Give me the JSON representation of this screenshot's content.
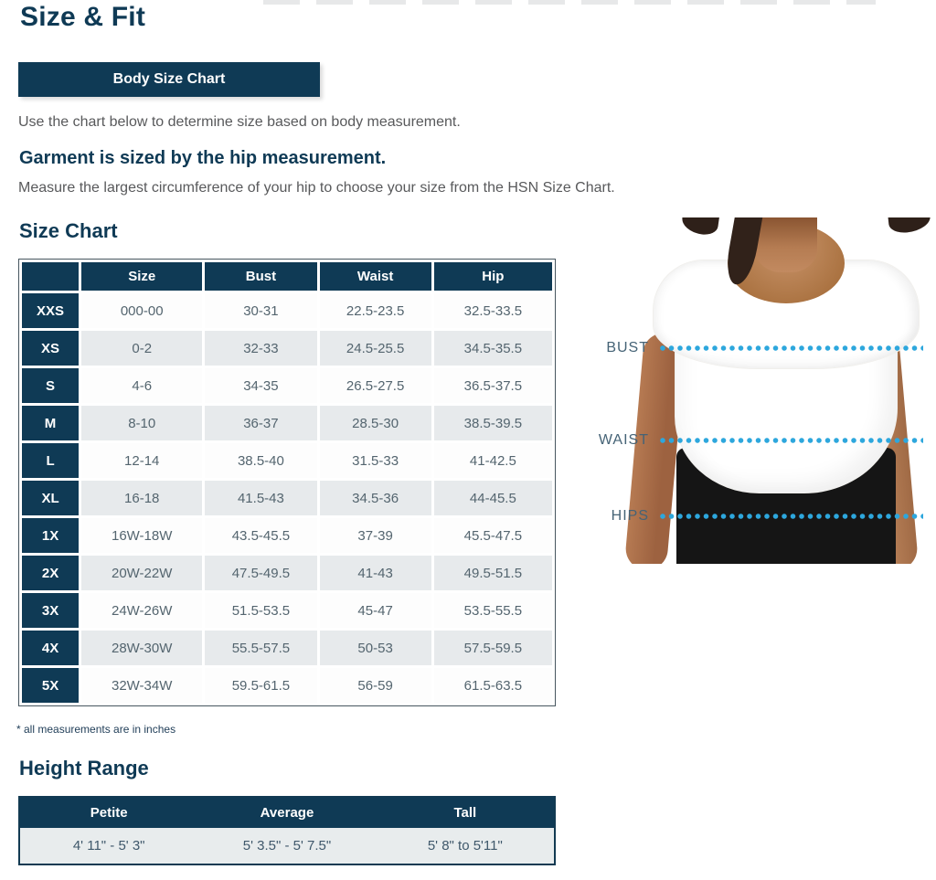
{
  "page": {
    "title": "Size & Fit",
    "button_label": "Body Size Chart",
    "intro": "Use the chart below to determine size based on body measurement.",
    "garment_heading": "Garment is sized by the hip measurement.",
    "measure_instruction": "Measure the largest circumference of your hip to choose your size from the HSN Size Chart."
  },
  "size_chart": {
    "heading": "Size Chart",
    "columns": [
      "",
      "Size",
      "Bust",
      "Waist",
      "Hip"
    ],
    "rows": [
      [
        "XXS",
        "000-00",
        "30-31",
        "22.5-23.5",
        "32.5-33.5"
      ],
      [
        "XS",
        "0-2",
        "32-33",
        "24.5-25.5",
        "34.5-35.5"
      ],
      [
        "S",
        "4-6",
        "34-35",
        "26.5-27.5",
        "36.5-37.5"
      ],
      [
        "M",
        "8-10",
        "36-37",
        "28.5-30",
        "38.5-39.5"
      ],
      [
        "L",
        "12-14",
        "38.5-40",
        "31.5-33",
        "41-42.5"
      ],
      [
        "XL",
        "16-18",
        "41.5-43",
        "34.5-36",
        "44-45.5"
      ],
      [
        "1X",
        "16W-18W",
        "43.5-45.5",
        "37-39",
        "45.5-47.5"
      ],
      [
        "2X",
        "20W-22W",
        "47.5-49.5",
        "41-43",
        "49.5-51.5"
      ],
      [
        "3X",
        "24W-26W",
        "51.5-53.5",
        "45-47",
        "53.5-55.5"
      ],
      [
        "4X",
        "28W-30W",
        "55.5-57.5",
        "50-53",
        "57.5-59.5"
      ],
      [
        "5X",
        "32W-34W",
        "59.5-61.5",
        "56-59",
        "61.5-63.5"
      ]
    ],
    "footnote": "* all measurements are in inches"
  },
  "height_range": {
    "heading": "Height Range",
    "columns": [
      "Petite",
      "Average",
      "Tall"
    ],
    "rows": [
      [
        "4' 11\" - 5' 3\"",
        "5' 3.5\" - 5' 7.5\"",
        "5' 8\" to 5'11\""
      ]
    ]
  },
  "figure": {
    "labels": {
      "bust": "BUST",
      "waist": "WAIST",
      "hips": "HIPS"
    }
  },
  "colors": {
    "brand_navy": "#0f3a55",
    "body_text_gray": "#58595b",
    "table_cell_text": "#54656f",
    "row_alt_gray": "#e7eaec",
    "measure_dot_blue": "#2da7dd"
  }
}
